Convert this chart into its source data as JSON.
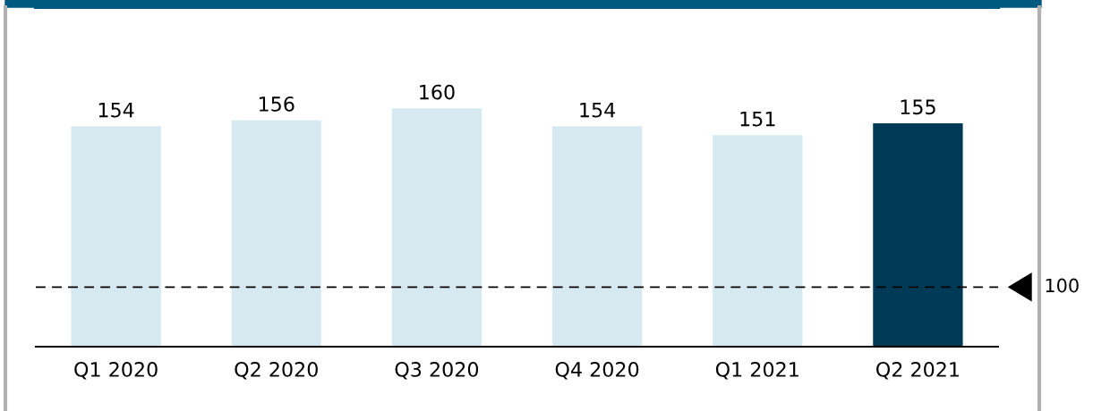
{
  "chart_data": {
    "type": "bar",
    "categories": [
      "Q1 2020",
      "Q2 2020",
      "Q3 2020",
      "Q4 2020",
      "Q1 2021",
      "Q2 2021"
    ],
    "values": [
      154,
      156,
      160,
      154,
      151,
      155
    ],
    "colors": [
      "#d6e9f0",
      "#d6e9f0",
      "#d6e9f0",
      "#d6e9f0",
      "#d6e9f0",
      "#003a57"
    ],
    "ylim": [
      80,
      194
    ],
    "data_labels": true,
    "grid": false,
    "legend": false,
    "ref_lines": [
      {
        "axis": "y",
        "value": 100,
        "label": "100",
        "color": "#000000",
        "line_style": "dashed"
      }
    ]
  }
}
